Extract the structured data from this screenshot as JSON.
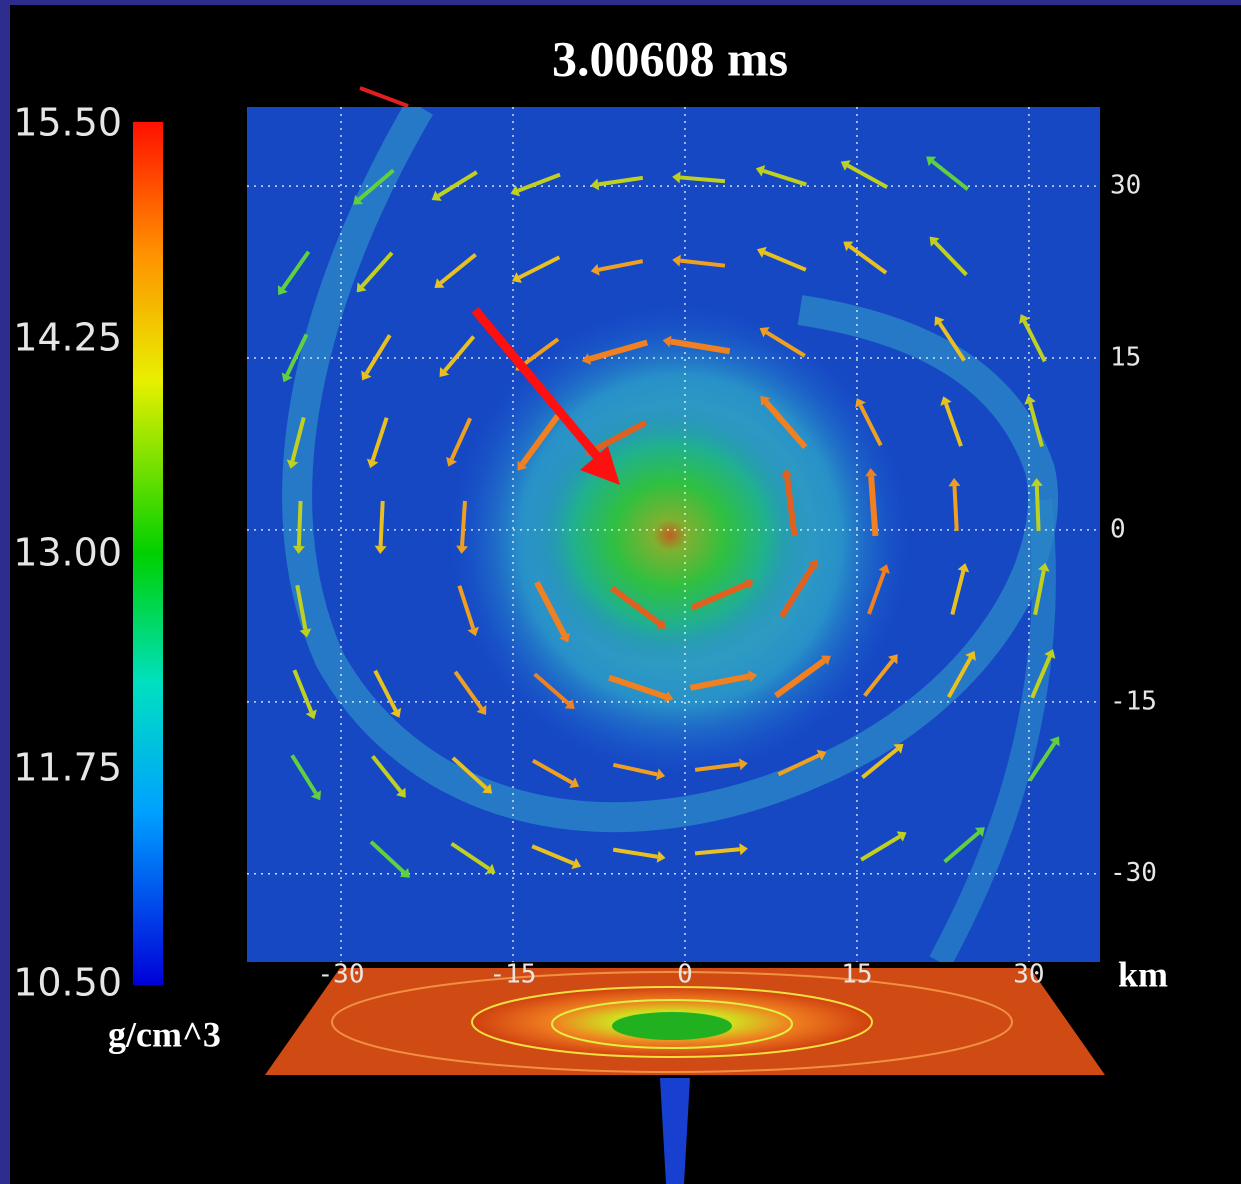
{
  "title": "3.00608 ms",
  "colorbar": {
    "lim": [
      10.5,
      15.5
    ],
    "ticks": [
      {
        "value": 15.5,
        "label": "15.50"
      },
      {
        "value": 14.25,
        "label": "14.25"
      },
      {
        "value": 13.0,
        "label": "13.00"
      },
      {
        "value": 11.75,
        "label": "11.75"
      },
      {
        "value": 10.5,
        "label": "10.50"
      }
    ],
    "unit": "g/cm^3"
  },
  "axes": {
    "xlim": [
      -38.2,
      36.2
    ],
    "ylim": [
      -37.7,
      36.9
    ],
    "xticks": [
      -30,
      -15,
      0,
      15,
      30
    ],
    "yticks": [
      30,
      15,
      0,
      -15,
      -30
    ],
    "unit": "km"
  }
}
